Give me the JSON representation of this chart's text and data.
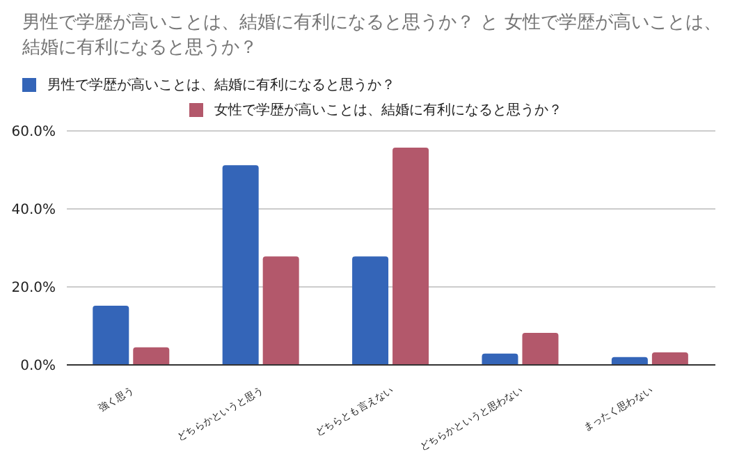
{
  "chart_data": {
    "type": "bar",
    "title": "男性で学歴が高いことは、結婚に有利になると思うか？ と 女性で学歴が高いことは、結婚に有利になると思うか？",
    "categories": [
      "強く思う",
      "どちらかというと思う",
      "どちらとも言えない",
      "どちらかというと思わない",
      "まったく思わない"
    ],
    "series": [
      {
        "name": "男性で学歴が高いことは、結婚に有利になると思うか？",
        "color": "#3465b8",
        "values": [
          15.2,
          51.2,
          27.8,
          2.9,
          2.0
        ]
      },
      {
        "name": "女性で学歴が高いことは、結婚に有利になると思うか？",
        "color": "#b3586b",
        "values": [
          4.5,
          27.8,
          55.7,
          8.2,
          3.2
        ]
      }
    ],
    "ylim": [
      0,
      60
    ],
    "yticks": [
      {
        "value": 0,
        "label": "0.0%"
      },
      {
        "value": 20,
        "label": "20.0%"
      },
      {
        "value": 40,
        "label": "40.0%"
      },
      {
        "value": 60,
        "label": "60.0%"
      }
    ],
    "grid": "y",
    "legend": "top left"
  }
}
